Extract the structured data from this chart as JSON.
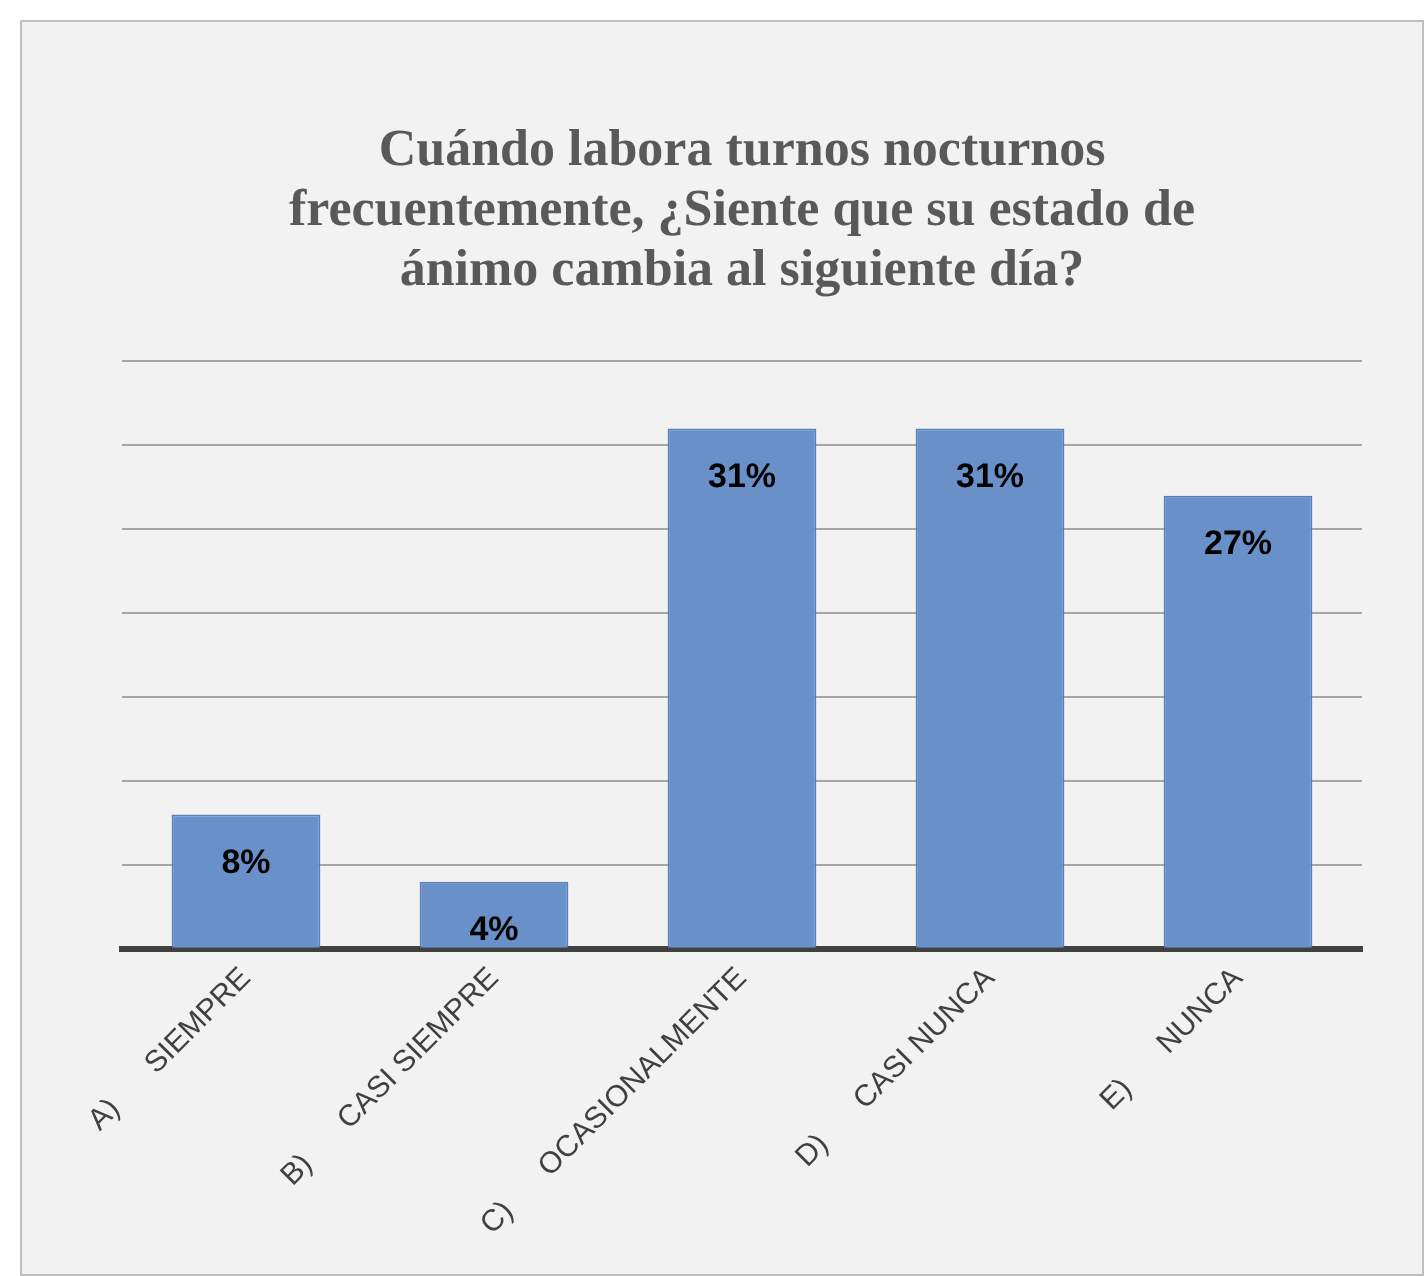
{
  "chart_data": {
    "type": "bar",
    "title": "Cuándo labora turnos nocturnos frecuentemente, ¿Siente que su estado de ánimo cambia al siguiente día?",
    "categories": [
      "A)      SIEMPRE",
      "B)      CASI SIEMPRE",
      "C)      OCASIONALMENTE",
      "D)      CASI NUNCA",
      "E)      NUNCA"
    ],
    "values": [
      8,
      4,
      31,
      31,
      27
    ],
    "value_labels": [
      "8%",
      "4%",
      "31%",
      "31%",
      "27%"
    ],
    "color": "#6990c8",
    "ylim": [
      0,
      35
    ],
    "grid": "y",
    "tick_labels": "x",
    "legend": false
  }
}
